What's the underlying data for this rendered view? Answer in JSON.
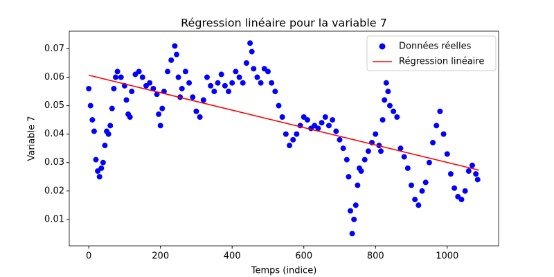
{
  "chart_data": {
    "type": "scatter",
    "title": "Régression linéaire pour la variable 7",
    "x_label": "Temps (indice)",
    "y_label": "Variable 7",
    "xlim": [
      -54.45,
      1143.45
    ],
    "ylim": [
      0.0007,
      0.0762
    ],
    "xticks": [
      0,
      200,
      400,
      600,
      800,
      1000
    ],
    "yticks": [
      0.01,
      0.02,
      0.03,
      0.04,
      0.05,
      0.06,
      0.07
    ],
    "legend": "upper right",
    "series": [
      {
        "name": "Données réelles",
        "color": "#0000ff",
        "kind": "scatter",
        "x": [
          0,
          5,
          10,
          15,
          20,
          25,
          30,
          35,
          40,
          45,
          50,
          55,
          60,
          65,
          70,
          75,
          80,
          90,
          100,
          105,
          110,
          115,
          120,
          130,
          140,
          150,
          160,
          170,
          180,
          190,
          195,
          200,
          205,
          210,
          220,
          230,
          240,
          245,
          250,
          255,
          260,
          270,
          280,
          290,
          300,
          310,
          320,
          330,
          340,
          350,
          360,
          370,
          380,
          390,
          400,
          410,
          420,
          430,
          440,
          450,
          455,
          460,
          470,
          480,
          490,
          500,
          510,
          520,
          530,
          540,
          550,
          560,
          570,
          580,
          590,
          600,
          610,
          620,
          630,
          640,
          650,
          660,
          670,
          680,
          690,
          700,
          710,
          720,
          725,
          730,
          735,
          740,
          745,
          750,
          755,
          760,
          770,
          780,
          790,
          800,
          810,
          815,
          820,
          825,
          830,
          835,
          840,
          850,
          860,
          870,
          880,
          890,
          900,
          910,
          920,
          930,
          940,
          950,
          960,
          970,
          980,
          990,
          1000,
          1010,
          1020,
          1030,
          1040,
          1050,
          1060,
          1070,
          1080,
          1085
        ],
        "values": [
          0.056,
          0.05,
          0.045,
          0.041,
          0.031,
          0.027,
          0.025,
          0.028,
          0.03,
          0.036,
          0.041,
          0.04,
          0.043,
          0.049,
          0.056,
          0.06,
          0.062,
          0.06,
          0.057,
          0.052,
          0.047,
          0.046,
          0.055,
          0.061,
          0.062,
          0.06,
          0.057,
          0.058,
          0.056,
          0.054,
          0.047,
          0.043,
          0.049,
          0.055,
          0.062,
          0.066,
          0.071,
          0.068,
          0.06,
          0.053,
          0.056,
          0.062,
          0.058,
          0.053,
          0.048,
          0.046,
          0.052,
          0.06,
          0.057,
          0.055,
          0.058,
          0.061,
          0.057,
          0.055,
          0.058,
          0.062,
          0.06,
          0.058,
          0.065,
          0.072,
          0.069,
          0.063,
          0.06,
          0.058,
          0.063,
          0.062,
          0.058,
          0.055,
          0.05,
          0.046,
          0.04,
          0.036,
          0.038,
          0.04,
          0.043,
          0.046,
          0.045,
          0.042,
          0.043,
          0.042,
          0.044,
          0.046,
          0.043,
          0.045,
          0.041,
          0.038,
          0.035,
          0.031,
          0.025,
          0.013,
          0.005,
          0.01,
          0.015,
          0.022,
          0.028,
          0.027,
          0.031,
          0.034,
          0.037,
          0.04,
          0.036,
          0.034,
          0.045,
          0.052,
          0.058,
          0.055,
          0.05,
          0.048,
          0.046,
          0.035,
          0.032,
          0.028,
          0.022,
          0.017,
          0.015,
          0.02,
          0.023,
          0.03,
          0.037,
          0.043,
          0.048,
          0.04,
          0.033,
          0.026,
          0.021,
          0.018,
          0.017,
          0.02,
          0.027,
          0.029,
          0.026,
          0.024
        ]
      },
      {
        "name": "Régression linéaire",
        "color": "#ff0000",
        "kind": "line",
        "x": [
          0,
          1089
        ],
        "values": [
          0.0607,
          0.0273
        ]
      }
    ]
  }
}
